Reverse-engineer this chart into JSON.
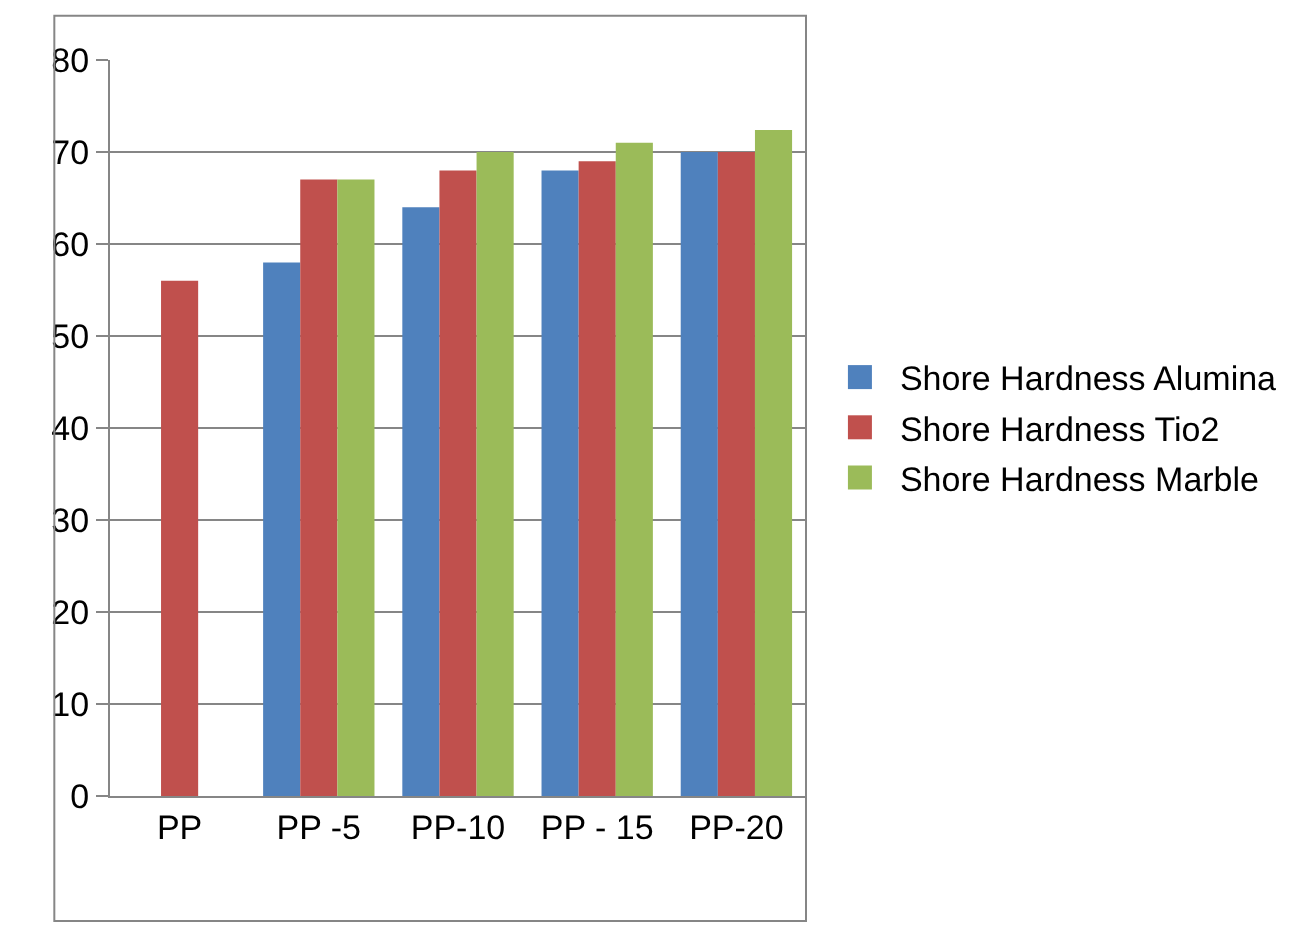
{
  "chart_data": {
    "type": "bar",
    "categories": [
      "PP",
      "PP -5",
      "PP-10",
      "PP - 15",
      "PP-20"
    ],
    "series": [
      {
        "name": "Shore Hardness Alumina",
        "color": "#4f81bd",
        "values": [
          null,
          58,
          64,
          68,
          70
        ]
      },
      {
        "name": "Shore Hardness Tio2",
        "color": "#c0504d",
        "values": [
          56,
          67,
          68,
          69,
          70
        ]
      },
      {
        "name": "Shore Hardness Marble",
        "color": "#9bbb59",
        "values": [
          null,
          67,
          70,
          71,
          72.4
        ]
      }
    ],
    "ylim": [
      0,
      80
    ],
    "yticks": [
      0,
      10,
      20,
      30,
      40,
      50,
      60,
      70,
      80
    ],
    "grid": "y",
    "legend": "right"
  }
}
